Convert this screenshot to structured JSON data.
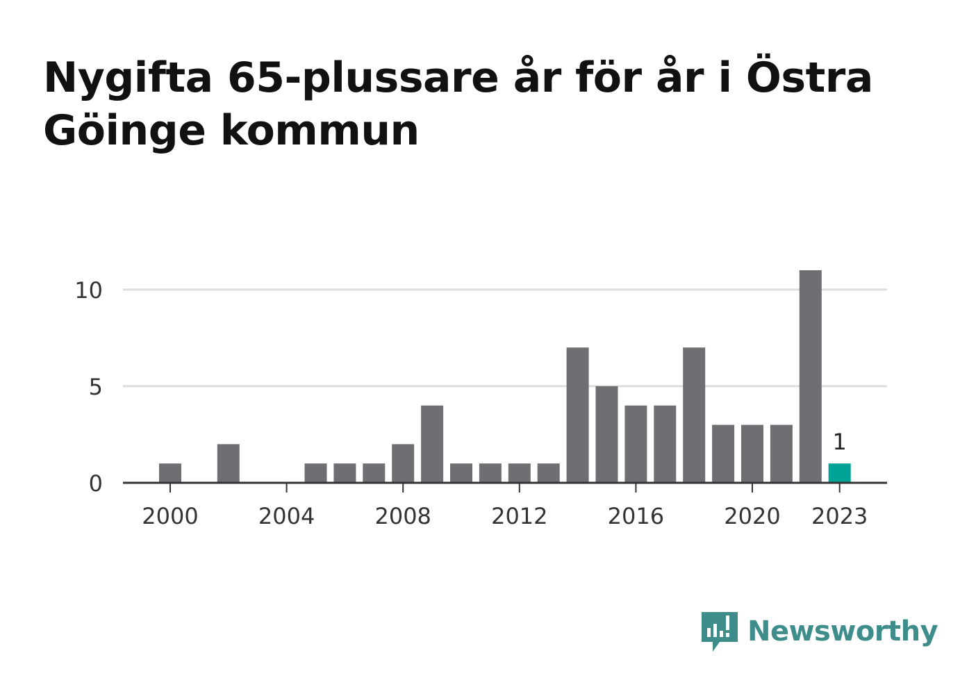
{
  "title": "Nygifta 65-plussare år för år i Östra Göinge kommun",
  "brand": {
    "name": "Newsworthy",
    "color": "#3e8d8a"
  },
  "colors": {
    "bar": "#6f6e73",
    "highlight": "#00a397",
    "grid": "#dddddd",
    "axis": "#333333"
  },
  "chart_data": {
    "type": "bar",
    "title": "Nygifta 65-plussare år för år i Östra Göinge kommun",
    "xlabel": "",
    "ylabel": "",
    "categories": [
      2000,
      2001,
      2002,
      2003,
      2004,
      2005,
      2006,
      2007,
      2008,
      2009,
      2010,
      2011,
      2012,
      2013,
      2014,
      2015,
      2016,
      2017,
      2018,
      2019,
      2020,
      2021,
      2022,
      2023
    ],
    "values": [
      1,
      0,
      2,
      0,
      0,
      1,
      1,
      1,
      2,
      4,
      1,
      1,
      1,
      1,
      7,
      5,
      4,
      4,
      7,
      3,
      3,
      3,
      11,
      1
    ],
    "ylim": [
      0,
      11
    ],
    "yticks": [
      0,
      5,
      10
    ],
    "xticks": [
      2000,
      2004,
      2008,
      2012,
      2016,
      2020,
      2023
    ],
    "highlight": {
      "category": 2023,
      "label": "1"
    },
    "grid": true
  }
}
